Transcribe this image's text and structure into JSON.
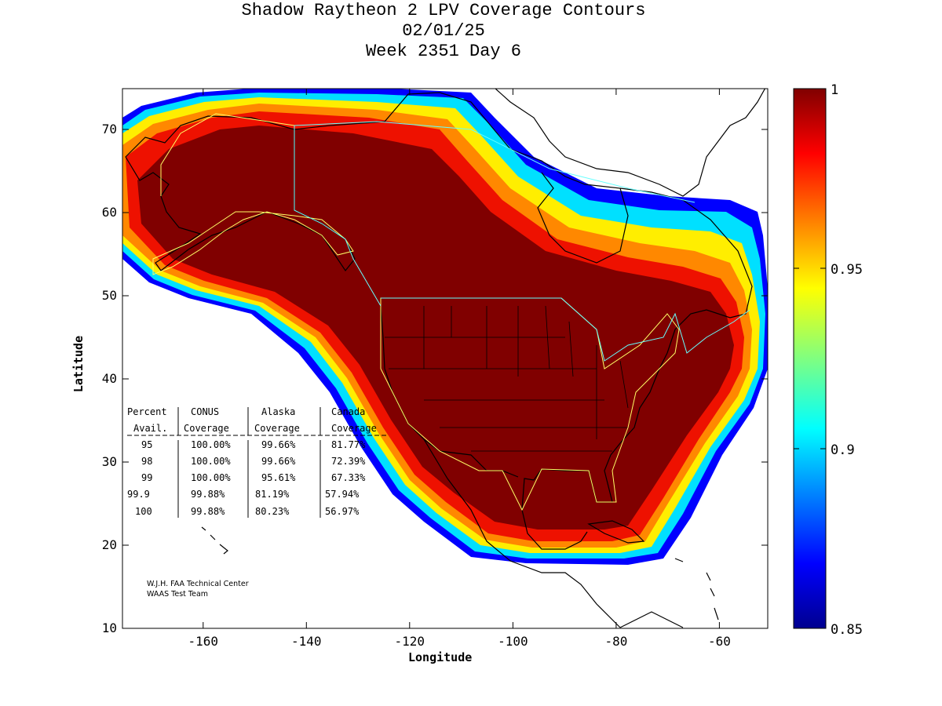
{
  "title": {
    "line1": "Shadow Raytheon 2 LPV Coverage Contours",
    "line2": "02/01/25",
    "line3": "Week 2351 Day 6"
  },
  "axes": {
    "xlabel": "Longitude",
    "ylabel": "Latitude",
    "xlim": [
      -175,
      -50
    ],
    "ylim": [
      10,
      75
    ],
    "xticks": [
      "-160",
      "-140",
      "-120",
      "-100",
      "-80",
      "-60"
    ],
    "yticks": [
      "10",
      "20",
      "30",
      "40",
      "50",
      "60",
      "70"
    ]
  },
  "colorbar": {
    "min": 0.85,
    "max": 1,
    "ticks": [
      "0.85",
      "0.9",
      "0.95",
      "1"
    ],
    "colormap": "jet"
  },
  "coverage_table": {
    "header1": [
      "Percent",
      "CONUS",
      "Alaska",
      "Canada"
    ],
    "header2": [
      "Avail.",
      "Coverage",
      "Coverage",
      "Coverage"
    ],
    "rows": [
      {
        "avail": "95",
        "conus": "100.00%",
        "alaska": "99.66%",
        "canada": "81.77%"
      },
      {
        "avail": "98",
        "conus": "100.00%",
        "alaska": "99.66%",
        "canada": "72.39%"
      },
      {
        "avail": "99",
        "conus": "100.00%",
        "alaska": "95.61%",
        "canada": "67.33%"
      },
      {
        "avail": "99.9",
        "conus": "99.88%",
        "alaska": "81.19%",
        "canada": "57.94%"
      },
      {
        "avail": "100",
        "conus": "99.88%",
        "alaska": "80.23%",
        "canada": "56.97%"
      }
    ]
  },
  "credit": {
    "line1": "W.J.H. FAA Technical Center",
    "line2": "WAAS Test Team"
  },
  "colors": {
    "boundary_conus_alaska": "#ffff66",
    "boundary_canada": "#66ffff",
    "coastline": "#000000",
    "max_coverage": "#800000"
  }
}
